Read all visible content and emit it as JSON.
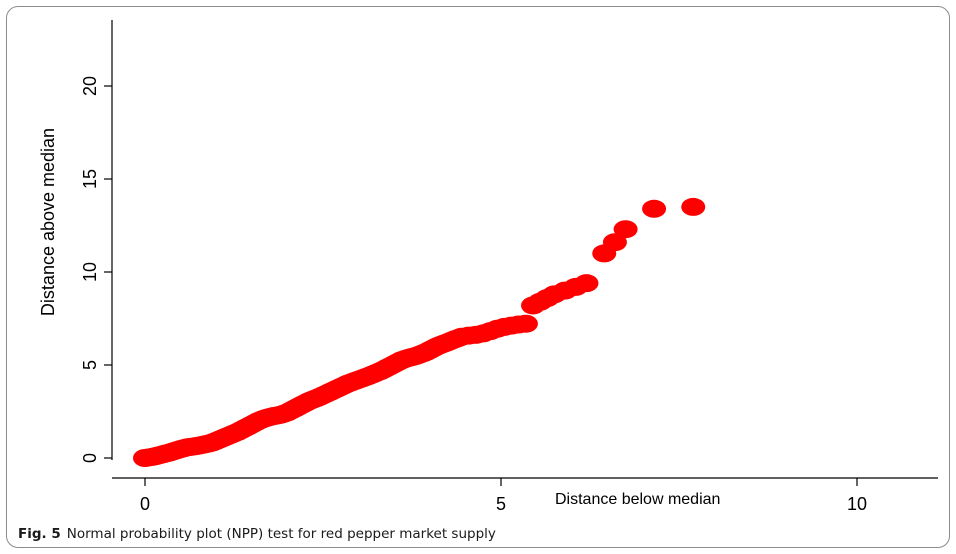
{
  "figure": {
    "label": "Fig. 5",
    "caption": "Normal probability plot (NPP) test for red pepper market supply"
  },
  "chart_data": {
    "type": "scatter",
    "title": "",
    "xlabel": "Distance below median",
    "ylabel": "Distance above median",
    "xlim": [
      -0.5,
      11.3
    ],
    "ylim": [
      -0.4,
      23.5
    ],
    "xticks": [
      0,
      5,
      10
    ],
    "yticks": [
      0,
      5,
      10,
      15,
      20
    ],
    "grid": false,
    "legend": "none",
    "point_color": "#ff0000",
    "points": [
      [
        0.0,
        0.0
      ],
      [
        0.05,
        0.03
      ],
      [
        0.1,
        0.06
      ],
      [
        0.15,
        0.1
      ],
      [
        0.2,
        0.15
      ],
      [
        0.25,
        0.2
      ],
      [
        0.3,
        0.25
      ],
      [
        0.35,
        0.3
      ],
      [
        0.4,
        0.36
      ],
      [
        0.45,
        0.42
      ],
      [
        0.5,
        0.48
      ],
      [
        0.55,
        0.53
      ],
      [
        0.6,
        0.58
      ],
      [
        0.65,
        0.6
      ],
      [
        0.7,
        0.63
      ],
      [
        0.75,
        0.66
      ],
      [
        0.8,
        0.7
      ],
      [
        0.85,
        0.74
      ],
      [
        0.9,
        0.78
      ],
      [
        0.95,
        0.84
      ],
      [
        1.0,
        0.92
      ],
      [
        1.05,
        1.0
      ],
      [
        1.1,
        1.08
      ],
      [
        1.15,
        1.16
      ],
      [
        1.2,
        1.24
      ],
      [
        1.25,
        1.32
      ],
      [
        1.3,
        1.4
      ],
      [
        1.35,
        1.5
      ],
      [
        1.4,
        1.6
      ],
      [
        1.45,
        1.7
      ],
      [
        1.5,
        1.8
      ],
      [
        1.55,
        1.9
      ],
      [
        1.6,
        2.0
      ],
      [
        1.65,
        2.08
      ],
      [
        1.7,
        2.15
      ],
      [
        1.75,
        2.2
      ],
      [
        1.8,
        2.25
      ],
      [
        1.85,
        2.28
      ],
      [
        1.9,
        2.32
      ],
      [
        1.95,
        2.38
      ],
      [
        2.0,
        2.45
      ],
      [
        2.05,
        2.55
      ],
      [
        2.1,
        2.65
      ],
      [
        2.15,
        2.75
      ],
      [
        2.2,
        2.85
      ],
      [
        2.25,
        2.95
      ],
      [
        2.3,
        3.05
      ],
      [
        2.35,
        3.13
      ],
      [
        2.4,
        3.2
      ],
      [
        2.45,
        3.28
      ],
      [
        2.5,
        3.37
      ],
      [
        2.55,
        3.46
      ],
      [
        2.6,
        3.55
      ],
      [
        2.65,
        3.64
      ],
      [
        2.7,
        3.73
      ],
      [
        2.75,
        3.82
      ],
      [
        2.8,
        3.91
      ],
      [
        2.85,
        4.0
      ],
      [
        2.9,
        4.07
      ],
      [
        2.95,
        4.14
      ],
      [
        3.0,
        4.21
      ],
      [
        3.05,
        4.28
      ],
      [
        3.1,
        4.35
      ],
      [
        3.15,
        4.42
      ],
      [
        3.2,
        4.5
      ],
      [
        3.25,
        4.58
      ],
      [
        3.3,
        4.66
      ],
      [
        3.35,
        4.75
      ],
      [
        3.4,
        4.85
      ],
      [
        3.45,
        4.95
      ],
      [
        3.5,
        5.05
      ],
      [
        3.55,
        5.15
      ],
      [
        3.6,
        5.25
      ],
      [
        3.65,
        5.32
      ],
      [
        3.7,
        5.38
      ],
      [
        3.75,
        5.43
      ],
      [
        3.8,
        5.48
      ],
      [
        3.85,
        5.55
      ],
      [
        3.9,
        5.62
      ],
      [
        3.95,
        5.7
      ],
      [
        4.0,
        5.8
      ],
      [
        4.05,
        5.9
      ],
      [
        4.1,
        6.0
      ],
      [
        4.15,
        6.08
      ],
      [
        4.2,
        6.15
      ],
      [
        4.25,
        6.22
      ],
      [
        4.3,
        6.3
      ],
      [
        4.35,
        6.38
      ],
      [
        4.4,
        6.45
      ],
      [
        4.45,
        6.52
      ],
      [
        4.55,
        6.58
      ],
      [
        4.65,
        6.62
      ],
      [
        4.75,
        6.7
      ],
      [
        4.85,
        6.82
      ],
      [
        4.95,
        6.95
      ],
      [
        5.05,
        7.05
      ],
      [
        5.15,
        7.12
      ],
      [
        5.25,
        7.18
      ],
      [
        5.35,
        7.22
      ],
      [
        5.45,
        8.2
      ],
      [
        5.55,
        8.4
      ],
      [
        5.65,
        8.6
      ],
      [
        5.75,
        8.8
      ],
      [
        5.9,
        9.0
      ],
      [
        6.05,
        9.2
      ],
      [
        6.2,
        9.4
      ],
      [
        6.45,
        11.0
      ],
      [
        6.6,
        11.6
      ],
      [
        6.75,
        12.3
      ],
      [
        7.15,
        13.4
      ],
      [
        7.7,
        13.5
      ]
    ]
  }
}
